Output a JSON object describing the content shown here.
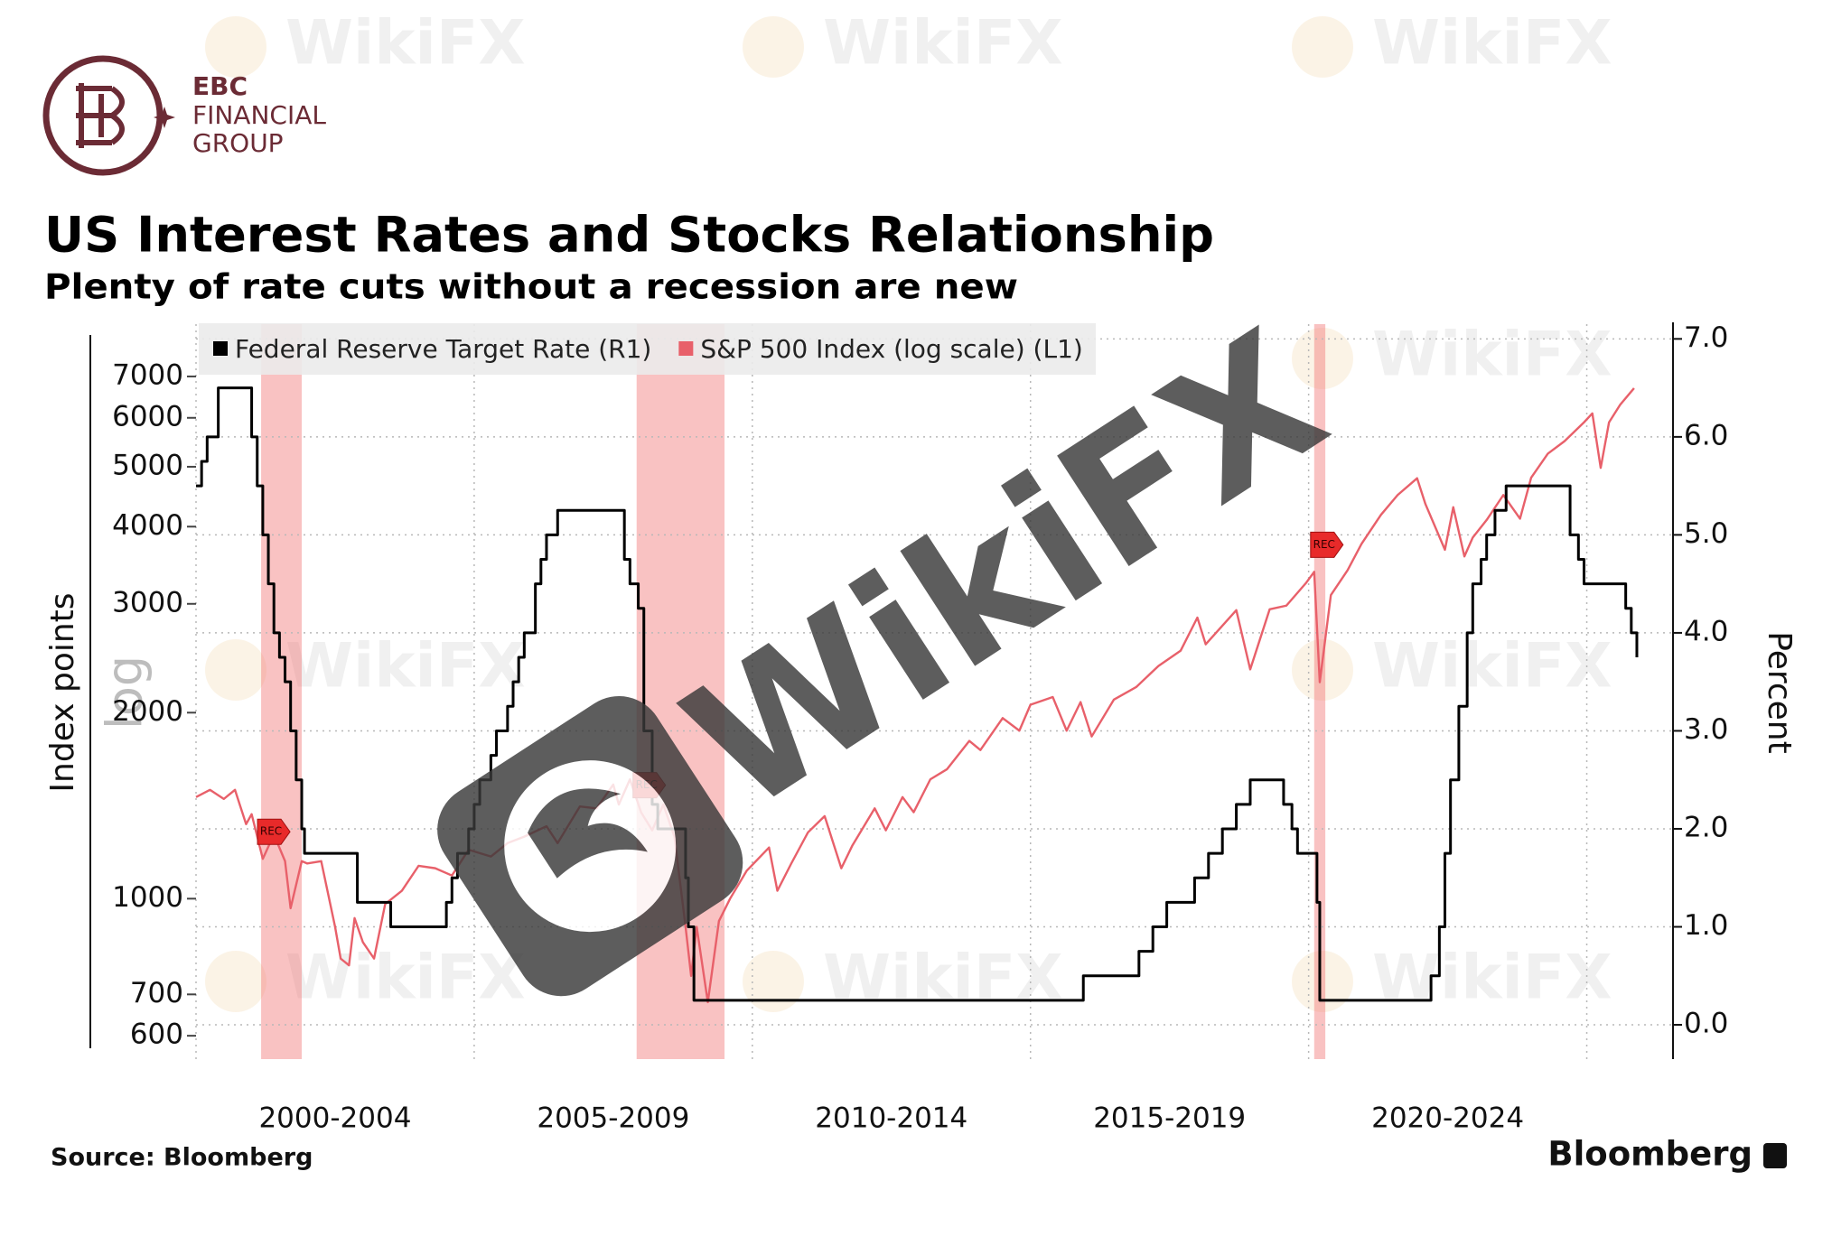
{
  "logo": {
    "lines": [
      "EBC",
      "FINANCIAL",
      "GROUP"
    ]
  },
  "watermark": "WikiFX",
  "chart_data": {
    "type": "line",
    "title": "US Interest Rates and Stocks Relationship",
    "subtitle": "Plenty of rate cuts without a recession are new",
    "ylabel": "Index points",
    "ylabel_note": "log",
    "y2label": "Percent",
    "source": "Source: Bloomberg",
    "brand": "Bloomberg",
    "legend": "top-left",
    "grid": true,
    "ylog": true,
    "xlim": [
      2000,
      2026.55
    ],
    "xticks": [
      {
        "value": 2002.5,
        "label": "2000-2004"
      },
      {
        "value": 2007.5,
        "label": "2005-2009"
      },
      {
        "value": 2012.5,
        "label": "2010-2014"
      },
      {
        "value": 2017.5,
        "label": "2015-2019"
      },
      {
        "value": 2022.5,
        "label": "2020-2024"
      }
    ],
    "xgrid": [
      2005,
      2010,
      2015,
      2020,
      2025
    ],
    "ylim": [
      550,
      8170
    ],
    "yticks": [
      600,
      700,
      1000,
      2000,
      3000,
      4000,
      5000,
      6000,
      7000
    ],
    "y2lim": [
      -0.35,
      7.04
    ],
    "y2ticks": [
      {
        "value": 0,
        "label": "0.0"
      },
      {
        "value": 1,
        "label": "1.0"
      },
      {
        "value": 2,
        "label": "2.0"
      },
      {
        "value": 3,
        "label": "3.0"
      },
      {
        "value": 4,
        "label": "4.0"
      },
      {
        "value": 5,
        "label": "5.0"
      },
      {
        "value": 6,
        "label": "6.0"
      },
      {
        "value": 7,
        "label": "7.0"
      }
    ],
    "recessions": [
      {
        "start": 2001.17,
        "end": 2001.9,
        "label": "REC"
      },
      {
        "start": 2007.92,
        "end": 2009.5,
        "label": "REC"
      },
      {
        "start": 2020.1,
        "end": 2020.3,
        "label": "REC"
      }
    ],
    "series": [
      {
        "name": "Federal Reserve Target Rate (R1)",
        "color": "#000000",
        "axis": "y2",
        "step": true,
        "x": [
          2000.0,
          2000.1,
          2000.2,
          2000.4,
          2001.0,
          2001.1,
          2001.2,
          2001.3,
          2001.4,
          2001.5,
          2001.6,
          2001.7,
          2001.8,
          2001.9,
          2001.95,
          2002.9,
          2003.5,
          2004.5,
          2004.6,
          2004.7,
          2004.9,
          2005.0,
          2005.1,
          2005.3,
          2005.4,
          2005.6,
          2005.7,
          2005.8,
          2005.9,
          2006.1,
          2006.2,
          2006.3,
          2006.5,
          2007.7,
          2007.8,
          2007.95,
          2008.05,
          2008.2,
          2008.3,
          2008.8,
          2008.85,
          2008.95,
          2015.95,
          2016.95,
          2017.2,
          2017.45,
          2017.95,
          2018.2,
          2018.45,
          2018.7,
          2018.95,
          2019.55,
          2019.7,
          2019.8,
          2020.15,
          2020.2,
          2022.2,
          2022.35,
          2022.45,
          2022.55,
          2022.7,
          2022.85,
          2022.95,
          2023.1,
          2023.2,
          2023.35,
          2023.55,
          2024.7,
          2024.85,
          2024.95,
          2025.7,
          2025.8,
          2025.9
        ],
        "values": [
          5.5,
          5.75,
          6.0,
          6.5,
          6.0,
          5.5,
          5.0,
          4.5,
          4.0,
          3.75,
          3.5,
          3.0,
          2.5,
          2.0,
          1.75,
          1.25,
          1.0,
          1.25,
          1.5,
          1.75,
          2.0,
          2.25,
          2.5,
          2.75,
          3.0,
          3.25,
          3.5,
          3.75,
          4.0,
          4.5,
          4.75,
          5.0,
          5.25,
          4.75,
          4.5,
          4.25,
          3.0,
          2.25,
          2.0,
          1.5,
          1.0,
          0.25,
          0.5,
          0.75,
          1.0,
          1.25,
          1.5,
          1.75,
          2.0,
          2.25,
          2.5,
          2.25,
          2.0,
          1.75,
          1.25,
          0.25,
          0.5,
          1.0,
          1.75,
          2.5,
          3.25,
          4.0,
          4.5,
          4.75,
          5.0,
          5.25,
          5.5,
          5.0,
          4.75,
          4.5,
          4.25,
          4.0,
          3.75
        ]
      },
      {
        "name": "S&P 500 Index (log scale) (L1)",
        "color": "#e8606a",
        "x": [
          2000.0,
          2000.25,
          2000.5,
          2000.7,
          2000.9,
          2001.0,
          2001.2,
          2001.4,
          2001.6,
          2001.7,
          2001.9,
          2002.0,
          2002.25,
          2002.5,
          2002.6,
          2002.75,
          2002.85,
          2003.0,
          2003.2,
          2003.4,
          2003.7,
          2004.0,
          2004.3,
          2004.6,
          2004.9,
          2005.3,
          2005.6,
          2005.9,
          2006.3,
          2006.5,
          2006.9,
          2007.2,
          2007.5,
          2007.6,
          2007.8,
          2008.0,
          2008.2,
          2008.4,
          2008.6,
          2008.8,
          2008.9,
          2009.0,
          2009.2,
          2009.4,
          2009.6,
          2009.9,
          2010.3,
          2010.45,
          2010.7,
          2011.0,
          2011.3,
          2011.6,
          2011.8,
          2012.2,
          2012.4,
          2012.7,
          2012.9,
          2013.2,
          2013.5,
          2013.9,
          2014.1,
          2014.5,
          2014.8,
          2015.0,
          2015.4,
          2015.65,
          2015.9,
          2016.1,
          2016.5,
          2016.9,
          2017.3,
          2017.7,
          2018.0,
          2018.15,
          2018.7,
          2018.95,
          2019.3,
          2019.6,
          2019.95,
          2020.1,
          2020.2,
          2020.4,
          2020.7,
          2020.95,
          2021.3,
          2021.6,
          2021.95,
          2022.1,
          2022.45,
          2022.6,
          2022.8,
          2022.95,
          2023.2,
          2023.5,
          2023.8,
          2024.0,
          2024.3,
          2024.6,
          2024.95,
          2025.1,
          2025.25,
          2025.4,
          2025.6,
          2025.85
        ],
        "values": [
          1460,
          1500,
          1450,
          1500,
          1320,
          1370,
          1160,
          1270,
          1150,
          965,
          1150,
          1140,
          1150,
          900,
          800,
          780,
          930,
          850,
          800,
          980,
          1030,
          1130,
          1120,
          1090,
          1200,
          1170,
          1230,
          1260,
          1310,
          1230,
          1410,
          1400,
          1530,
          1420,
          1560,
          1380,
          1290,
          1420,
          1260,
          900,
          750,
          900,
          680,
          920,
          1000,
          1110,
          1210,
          1030,
          1140,
          1280,
          1360,
          1120,
          1220,
          1400,
          1290,
          1460,
          1380,
          1560,
          1620,
          1800,
          1740,
          1960,
          1870,
          2060,
          2120,
          1870,
          2080,
          1830,
          2100,
          2200,
          2380,
          2520,
          2850,
          2580,
          2930,
          2350,
          2940,
          2980,
          3240,
          3380,
          2240,
          3100,
          3400,
          3750,
          4180,
          4500,
          4790,
          4350,
          3670,
          4300,
          3580,
          3840,
          4100,
          4500,
          4120,
          4800,
          5250,
          5500,
          5900,
          6100,
          4980,
          5900,
          6300,
          6700
        ]
      }
    ]
  }
}
